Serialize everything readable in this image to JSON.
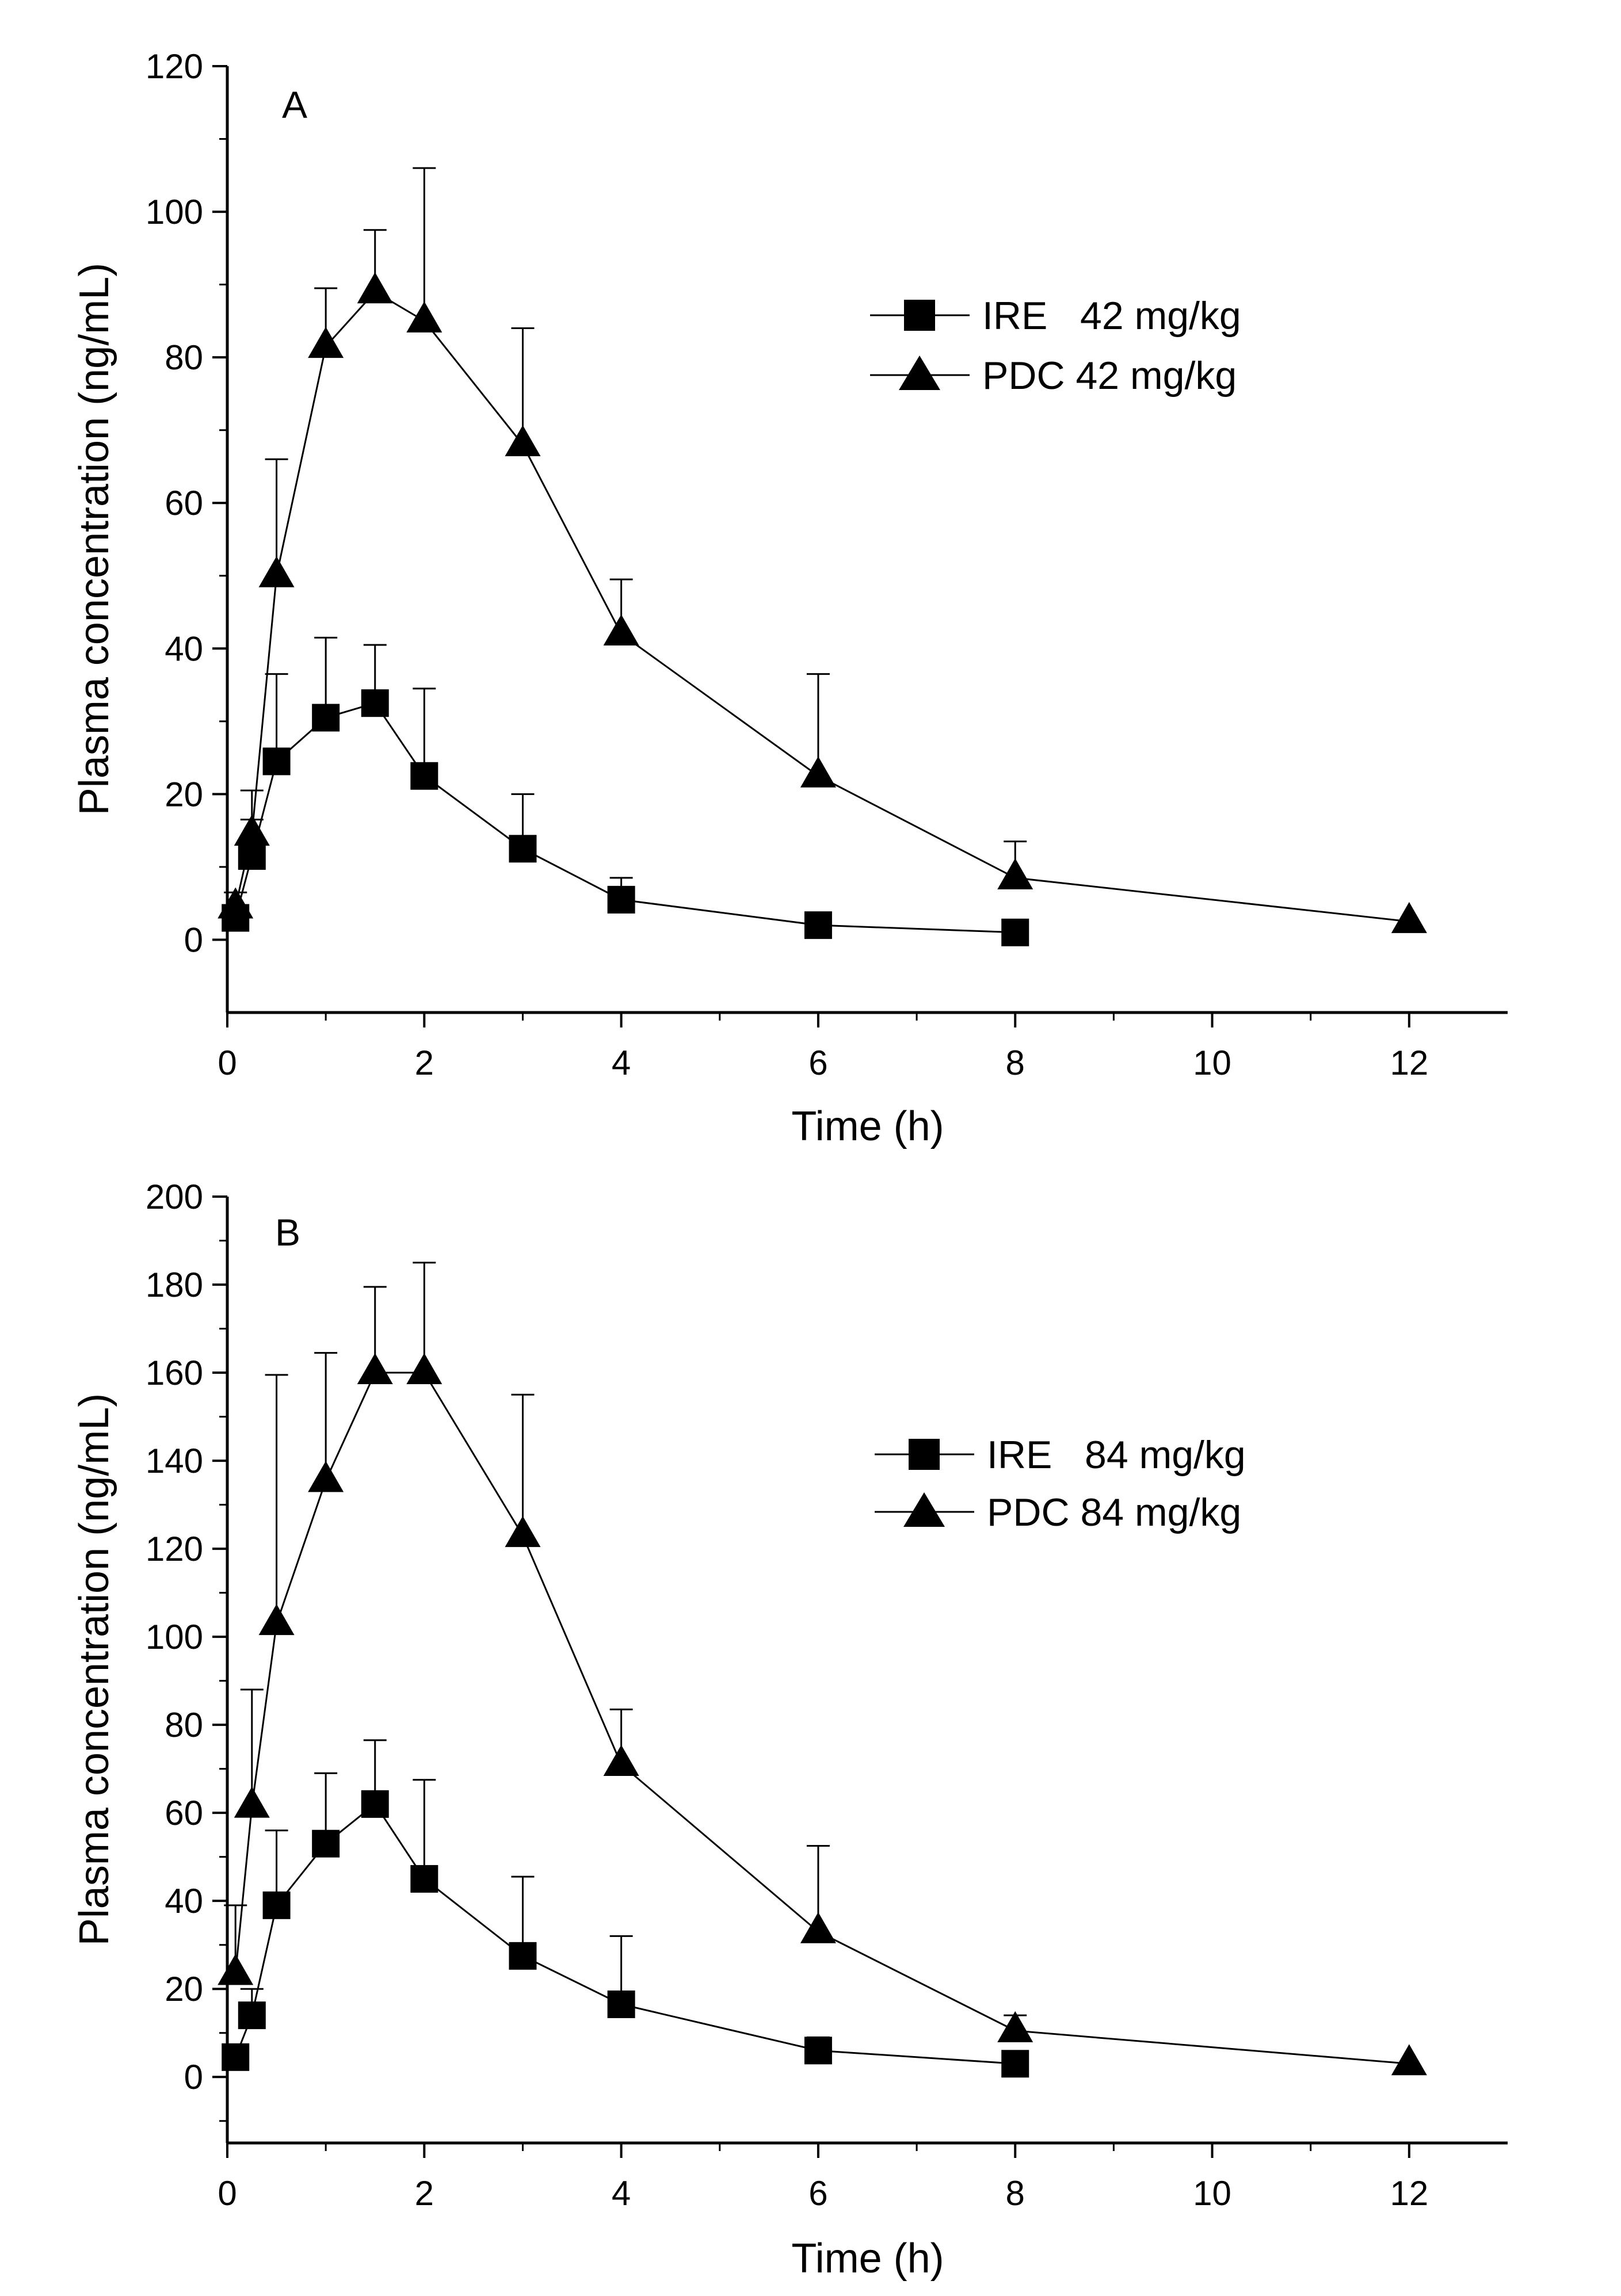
{
  "chart_data": [
    {
      "type": "line",
      "panel_label": "A",
      "xlabel": "Time (h)",
      "ylabel": "Plasma concentration (ng/mL)",
      "xlim": [
        0,
        13
      ],
      "ylim": [
        -10,
        120
      ],
      "xticks": [
        0,
        2,
        4,
        6,
        8,
        10,
        12
      ],
      "yticks": [
        0,
        20,
        40,
        60,
        80,
        100,
        120
      ],
      "legend": {
        "position": "upper-right"
      },
      "series": [
        {
          "name": "IRE   42 mg/kg",
          "marker": "square",
          "color": "#000000",
          "x": [
            0.083,
            0.25,
            0.5,
            1,
            1.5,
            2,
            3,
            4,
            6,
            8
          ],
          "y": [
            3,
            11.5,
            24.5,
            30.5,
            32.5,
            22.5,
            12.5,
            5.5,
            2,
            1
          ],
          "error": [
            1.5,
            5,
            12,
            11,
            8,
            12,
            7.5,
            3,
            0,
            0
          ]
        },
        {
          "name": "PDC 42 mg/kg",
          "marker": "triangle",
          "color": "#000000",
          "x": [
            0.083,
            0.25,
            0.5,
            1,
            1.5,
            2,
            3,
            4,
            6,
            8,
            12
          ],
          "y": [
            4.5,
            14.5,
            50,
            81.5,
            89,
            85,
            68,
            42,
            22.5,
            8.5,
            2.5
          ],
          "error": [
            2,
            6,
            16,
            8,
            8.5,
            21,
            16,
            7.5,
            14,
            5,
            0
          ]
        }
      ]
    },
    {
      "type": "line",
      "panel_label": "B",
      "xlabel": "Time (h)",
      "ylabel": "Plasma concentration (ng/mL)",
      "xlim": [
        0,
        13
      ],
      "ylim": [
        -15,
        200
      ],
      "xticks": [
        0,
        2,
        4,
        6,
        8,
        10,
        12
      ],
      "yticks": [
        0,
        20,
        40,
        60,
        80,
        100,
        120,
        140,
        160,
        180,
        200
      ],
      "legend": {
        "position": "center-right"
      },
      "series": [
        {
          "name": "IRE   84 mg/kg",
          "marker": "square",
          "color": "#000000",
          "x": [
            0.083,
            0.25,
            0.5,
            1,
            1.5,
            2,
            3,
            4,
            6,
            8
          ],
          "y": [
            4.5,
            14,
            39,
            53,
            62,
            45,
            27.5,
            16.5,
            6,
            3
          ],
          "error": [
            0,
            6,
            17,
            16,
            14.5,
            22.5,
            18,
            15.5,
            3,
            0
          ]
        },
        {
          "name": "PDC 84 mg/kg",
          "marker": "triangle",
          "color": "#000000",
          "x": [
            0.083,
            0.25,
            0.5,
            1,
            1.5,
            2,
            3,
            4,
            6,
            8,
            12
          ],
          "y": [
            23.5,
            61.5,
            103,
            135.5,
            160,
            160,
            123,
            71,
            33,
            10.5,
            3
          ],
          "error": [
            15.5,
            26.5,
            56.5,
            29,
            19.5,
            25,
            32,
            12.5,
            19.5,
            3.5,
            0
          ]
        }
      ]
    }
  ]
}
